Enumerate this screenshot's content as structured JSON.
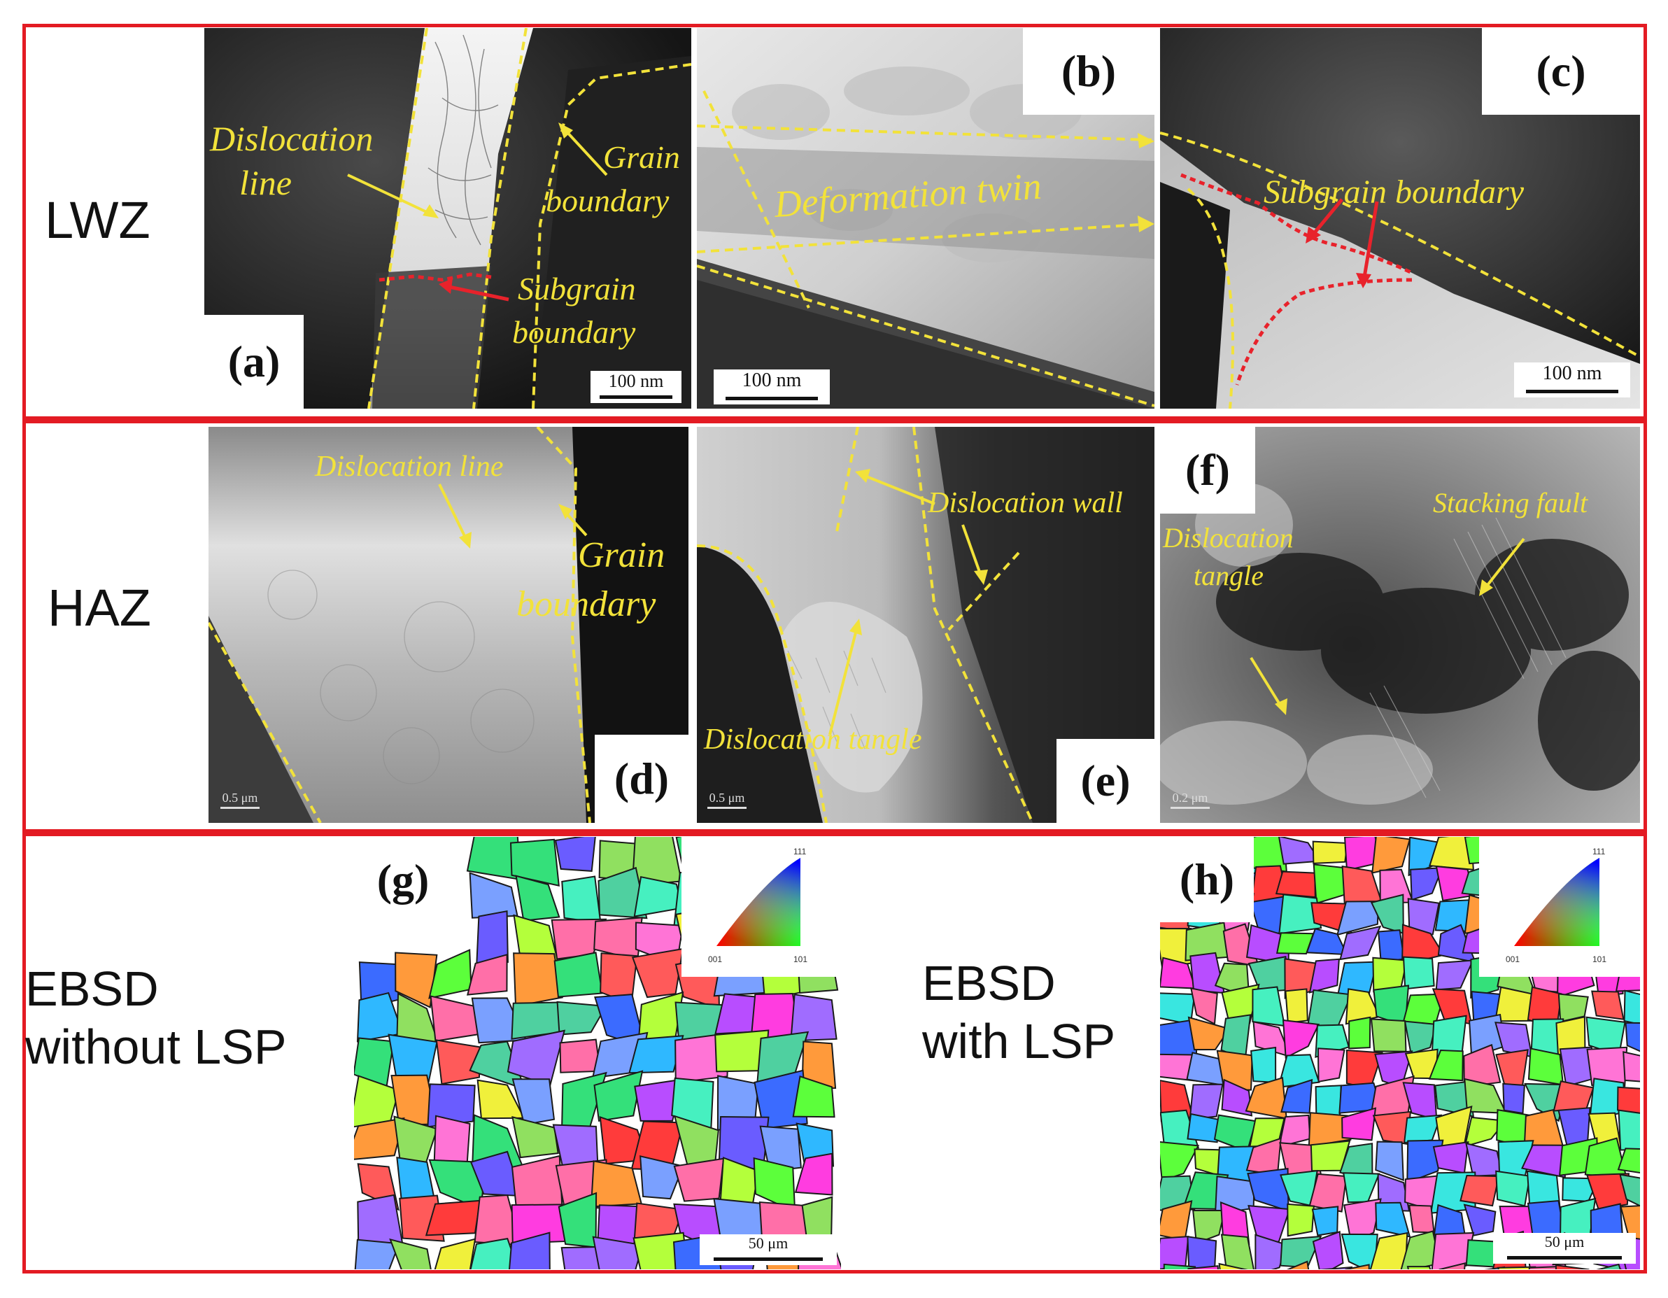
{
  "rows": {
    "lwz": "LWZ",
    "haz": "HAZ"
  },
  "panels": {
    "a": {
      "label": "(a)",
      "scale": "100 nm",
      "annotations": {
        "dislocation_line_1": "Dislocation",
        "dislocation_line_2": "line",
        "grain_boundary_1": "Grain",
        "grain_boundary_2": "boundary",
        "subgrain_1": "Subgrain",
        "subgrain_2": "boundary"
      }
    },
    "b": {
      "label": "(b)",
      "scale": "100 nm",
      "annotations": {
        "deformation_twin": "Deformation twin"
      }
    },
    "c": {
      "label": "(c)",
      "scale": "100 nm",
      "annotations": {
        "subgrain_boundary": "Subgrain boundary"
      }
    },
    "d": {
      "label": "(d)",
      "scale": "0.5 μm",
      "annotations": {
        "dislocation_line": "Dislocation line",
        "grain_boundary_1": "Grain",
        "grain_boundary_2": "boundary"
      }
    },
    "e": {
      "label": "(e)",
      "scale": "0.5 μm",
      "annotations": {
        "dislocation_wall": "Dislocation wall",
        "dislocation_tangle": "Dislocation tangle"
      }
    },
    "f": {
      "label": "(f)",
      "scale": "0.2 μm",
      "annotations": {
        "dislocation_tangle_1": "Dislocation",
        "dislocation_tangle_2": "tangle",
        "stacking_fault": "Stacking fault"
      }
    },
    "g": {
      "label": "(g)",
      "scale": "50 μm",
      "caption_1": "EBSD",
      "caption_2": "without LSP"
    },
    "h": {
      "label": "(h)",
      "scale": "50 μm",
      "caption_1": "EBSD",
      "caption_2": "with LSP"
    }
  },
  "ipf_key": {
    "top": "111",
    "left": "001",
    "right": "101"
  },
  "colors": {
    "frame": "#e31b23",
    "annotation": "#f2e23a",
    "subgrain": "#e8222b"
  }
}
